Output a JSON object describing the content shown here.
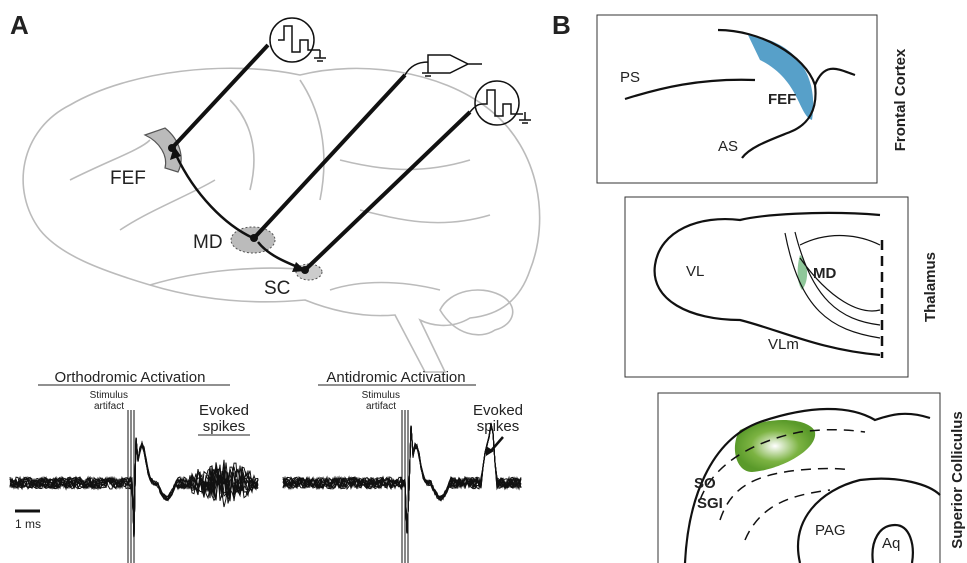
{
  "panel_a": {
    "label": "A",
    "regions": {
      "fef": "FEF",
      "md": "MD",
      "sc": "SC"
    },
    "recordings": [
      {
        "title": "Orthodromic Activation",
        "artifact_label": [
          "Stimulus",
          "artifact"
        ],
        "spikes_label": [
          "Evoked",
          "spikes"
        ]
      },
      {
        "title": "Antidromic Activation",
        "artifact_label": [
          "Stimulus",
          "artifact"
        ],
        "spikes_label": [
          "Evoked",
          "spikes"
        ]
      }
    ],
    "scale_bar": "1 ms"
  },
  "panel_b": {
    "label": "B",
    "sections": [
      {
        "title": "Frontal Cortex",
        "labels": [
          "PS",
          "FEF",
          "AS"
        ]
      },
      {
        "title": "Thalamus",
        "labels": [
          "VL",
          "MD",
          "VLm"
        ]
      },
      {
        "title": "Superior Colliculus",
        "labels": [
          "SO",
          "SGI",
          "PAG",
          "Aq"
        ]
      }
    ]
  }
}
